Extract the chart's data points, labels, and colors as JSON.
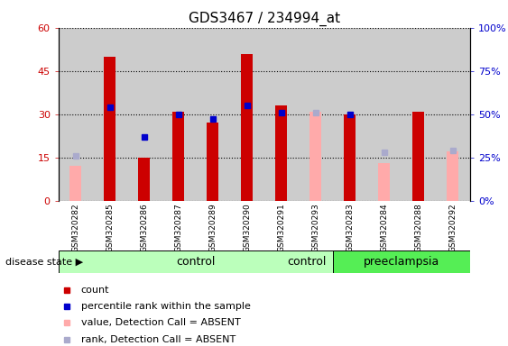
{
  "title": "GDS3467 / 234994_at",
  "samples": [
    "GSM320282",
    "GSM320285",
    "GSM320286",
    "GSM320287",
    "GSM320289",
    "GSM320290",
    "GSM320291",
    "GSM320293",
    "GSM320283",
    "GSM320284",
    "GSM320288",
    "GSM320292"
  ],
  "n_control": 8,
  "n_preeclampsia": 4,
  "count": [
    null,
    50,
    15,
    31,
    27,
    51,
    33,
    null,
    30,
    null,
    31,
    null
  ],
  "percentile_rank": [
    null,
    54,
    37,
    50,
    47,
    55,
    51,
    null,
    50,
    null,
    null,
    null
  ],
  "value_absent": [
    12,
    null,
    null,
    null,
    null,
    null,
    null,
    31,
    null,
    13,
    null,
    17
  ],
  "rank_absent": [
    26,
    null,
    null,
    null,
    null,
    null,
    null,
    51,
    null,
    28,
    null,
    29
  ],
  "ylim_left": [
    0,
    60
  ],
  "ylim_right": [
    0,
    100
  ],
  "yticks_left": [
    0,
    15,
    30,
    45,
    60
  ],
  "yticks_right": [
    0,
    25,
    50,
    75,
    100
  ],
  "ytick_labels_right": [
    "0%",
    "25%",
    "50%",
    "75%",
    "100%"
  ],
  "color_count": "#cc0000",
  "color_rank": "#0000cc",
  "color_value_absent": "#ffaaaa",
  "color_rank_absent": "#aaaacc",
  "color_control_bg": "#bbffbb",
  "color_preeclampsia_bg": "#55ee55",
  "color_sample_bg": "#cccccc",
  "bar_width": 0.35,
  "marker_size": 5,
  "white": "#ffffff"
}
